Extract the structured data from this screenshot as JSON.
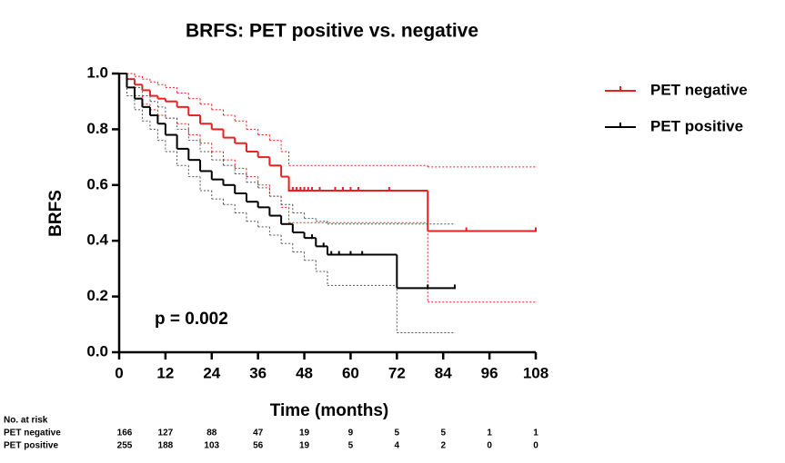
{
  "chart_data": {
    "type": "km",
    "title": "BRFS: PET positive vs. negative",
    "x_label": "Time (months)",
    "y_label": "BRFS",
    "annotation": "p = 0.002",
    "xlim": [
      0,
      108
    ],
    "ylim": [
      0,
      1
    ],
    "xticks": [
      0,
      12,
      24,
      36,
      48,
      60,
      72,
      84,
      96,
      108
    ],
    "yticks": [
      {
        "value": 0,
        "label": "0.0"
      },
      0.2,
      0.4,
      0.6,
      0.8,
      {
        "value": 1,
        "label": "1.0"
      }
    ],
    "series": [
      {
        "name": "PET negative",
        "color": "#e8201f",
        "x": [
          0,
          2,
          4,
          6,
          8,
          10,
          12,
          15,
          18,
          21,
          24,
          27,
          30,
          33,
          36,
          39,
          42,
          44,
          80,
          108
        ],
        "values": [
          1,
          0.98,
          0.96,
          0.94,
          0.92,
          0.91,
          0.9,
          0.88,
          0.85,
          0.82,
          0.8,
          0.77,
          0.75,
          0.72,
          0.7,
          0.67,
          0.63,
          0.58,
          0.435,
          0.435
        ],
        "ci_upper": [
          1,
          1,
          0.99,
          0.98,
          0.97,
          0.96,
          0.95,
          0.93,
          0.91,
          0.89,
          0.87,
          0.85,
          0.83,
          0.8,
          0.78,
          0.76,
          0.72,
          0.67,
          0.665,
          0.665
        ],
        "ci_lower": [
          1,
          0.95,
          0.92,
          0.89,
          0.87,
          0.85,
          0.84,
          0.82,
          0.78,
          0.75,
          0.72,
          0.69,
          0.66,
          0.63,
          0.6,
          0.56,
          0.52,
          0.465,
          0.18,
          0.18
        ],
        "censor_x": [
          44,
          45,
          46,
          47,
          48,
          49,
          50,
          52,
          56,
          58,
          60,
          62,
          70,
          90,
          108
        ],
        "censor_y": [
          0.58,
          0.58,
          0.58,
          0.58,
          0.58,
          0.58,
          0.58,
          0.58,
          0.58,
          0.58,
          0.58,
          0.58,
          0.58,
          0.435,
          0.435
        ]
      },
      {
        "name": "PET positive",
        "color": "#000000",
        "x": [
          0,
          2,
          4,
          6,
          8,
          10,
          12,
          15,
          18,
          21,
          24,
          27,
          30,
          33,
          36,
          39,
          42,
          45,
          48,
          51,
          54,
          72,
          87
        ],
        "values": [
          1,
          0.95,
          0.91,
          0.88,
          0.85,
          0.82,
          0.78,
          0.73,
          0.69,
          0.65,
          0.62,
          0.6,
          0.57,
          0.54,
          0.52,
          0.49,
          0.46,
          0.43,
          0.41,
          0.38,
          0.35,
          0.23,
          0.23
        ],
        "ci_upper": [
          1,
          0.98,
          0.95,
          0.92,
          0.9,
          0.88,
          0.84,
          0.8,
          0.76,
          0.72,
          0.69,
          0.67,
          0.64,
          0.61,
          0.59,
          0.56,
          0.53,
          0.5,
          0.48,
          0.47,
          0.46,
          0.46,
          0.46
        ],
        "ci_lower": [
          1,
          0.92,
          0.87,
          0.83,
          0.8,
          0.76,
          0.72,
          0.67,
          0.63,
          0.58,
          0.55,
          0.53,
          0.5,
          0.47,
          0.45,
          0.42,
          0.39,
          0.36,
          0.33,
          0.29,
          0.24,
          0.07,
          0.07
        ],
        "censor_x": [
          50,
          53,
          55,
          57,
          60,
          63,
          80,
          87
        ],
        "censor_y": [
          0.41,
          0.38,
          0.35,
          0.35,
          0.35,
          0.35,
          0.23,
          0.23
        ]
      }
    ],
    "legend": "right",
    "risk_table": {
      "title": "No. at risk",
      "rows": [
        {
          "name": "PET negative",
          "values": [
            166,
            127,
            88,
            47,
            19,
            9,
            5,
            5,
            1,
            1
          ]
        },
        {
          "name": "PET positive",
          "values": [
            255,
            188,
            103,
            56,
            19,
            5,
            4,
            2,
            0,
            0
          ]
        }
      ]
    }
  }
}
